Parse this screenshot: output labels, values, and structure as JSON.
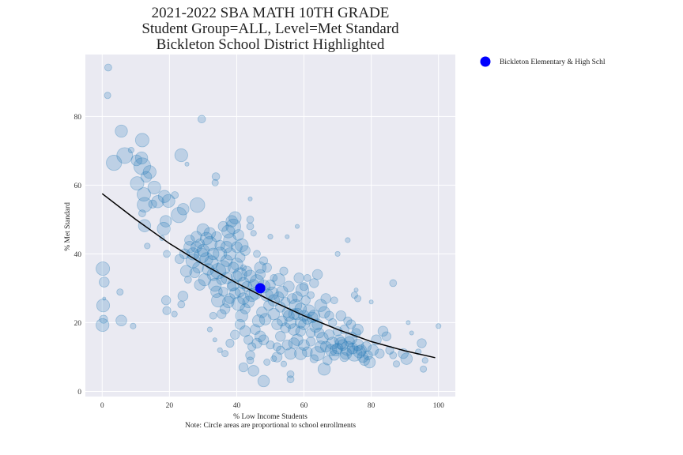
{
  "chart_data": {
    "type": "scatter",
    "title_lines": [
      "2021-2022 SBA MATH 10TH GRADE",
      "Student Group=ALL, Level=Met Standard",
      "Bickleton School District Highlighted"
    ],
    "xlabel": "% Low Income Students",
    "note": "Note: Circle areas are proportional to school enrollments",
    "ylabel": "% Met Standard",
    "xlim": [
      -5,
      105
    ],
    "ylim": [
      -1.5,
      98
    ],
    "xticks": [
      "0",
      "20",
      "40",
      "60",
      "80",
      "100"
    ],
    "yticks": [
      "0",
      "20",
      "40",
      "60",
      "80"
    ],
    "grid": true,
    "legend_position": "right",
    "colors": {
      "background": "#eaeaf2",
      "grid": "#ffffff",
      "point_fill": "#1f77b4",
      "highlight": "#0000ff",
      "trend": "#000000"
    },
    "highlight": {
      "name": "Bickleton Elementary & High Schl",
      "x": 47,
      "y": 30
    },
    "trend_line": {
      "x": [
        0,
        10,
        20,
        30,
        40,
        50,
        60,
        70,
        80,
        90,
        99
      ],
      "y": [
        57.5,
        50.0,
        43.0,
        37.0,
        31.5,
        26.5,
        22.0,
        18.0,
        14.5,
        11.8,
        9.8
      ]
    },
    "points": [
      [
        0.2,
        35.7,
        110
      ],
      [
        0.3,
        25.0,
        100
      ],
      [
        0.1,
        19.3,
        100
      ],
      [
        0.6,
        31.8,
        60
      ],
      [
        0.4,
        21.0,
        40
      ],
      [
        0.6,
        27.0,
        6
      ],
      [
        1.8,
        94.2,
        30
      ],
      [
        1.6,
        86.1,
        25
      ],
      [
        3.5,
        66.5,
        140
      ],
      [
        5.7,
        75.7,
        90
      ],
      [
        6.7,
        68.6,
        150
      ],
      [
        5.7,
        20.6,
        70
      ],
      [
        5.3,
        28.9,
        25
      ],
      [
        8.6,
        70.2,
        20
      ],
      [
        9.2,
        19.0,
        20
      ],
      [
        10.2,
        67.2,
        70
      ],
      [
        10.4,
        60.5,
        110
      ],
      [
        11.7,
        67.9,
        90
      ],
      [
        11.9,
        73.1,
        110
      ],
      [
        11.9,
        65.5,
        170
      ],
      [
        12.4,
        57.3,
        110
      ],
      [
        13.1,
        62.4,
        70
      ],
      [
        12.6,
        54.3,
        130
      ],
      [
        14.1,
        63.8,
        100
      ],
      [
        15.5,
        59.3,
        100
      ],
      [
        12.6,
        48.2,
        90
      ],
      [
        11.9,
        51.8,
        30
      ],
      [
        13.4,
        42.3,
        20
      ],
      [
        15.0,
        54.5,
        40
      ],
      [
        16.5,
        55.2,
        90
      ],
      [
        18.5,
        56.7,
        90
      ],
      [
        19.7,
        55.4,
        100
      ],
      [
        18.9,
        49.5,
        80
      ],
      [
        18.3,
        47.3,
        100
      ],
      [
        17.8,
        44.6,
        15
      ],
      [
        19.2,
        40.0,
        30
      ],
      [
        21.6,
        57.1,
        30
      ],
      [
        23.5,
        68.7,
        100
      ],
      [
        22.8,
        51.3,
        140
      ],
      [
        24.1,
        53.0,
        80
      ],
      [
        25.2,
        66.1,
        10
      ],
      [
        28.3,
        54.2,
        130
      ],
      [
        29.6,
        79.2,
        35
      ],
      [
        33.8,
        62.5,
        35
      ],
      [
        33.6,
        60.7,
        25
      ],
      [
        19.0,
        26.5,
        50
      ],
      [
        19.2,
        23.5,
        40
      ],
      [
        21.5,
        22.5,
        20
      ],
      [
        23.5,
        25.3,
        30
      ],
      [
        24.0,
        27.7,
        60
      ],
      [
        25.5,
        32.5,
        30
      ],
      [
        26.0,
        42.0,
        80
      ],
      [
        24.5,
        40.0,
        60
      ],
      [
        23.0,
        38.5,
        50
      ],
      [
        25.0,
        35.0,
        80
      ],
      [
        27.0,
        38.0,
        120
      ],
      [
        28.0,
        45.0,
        70
      ],
      [
        29.0,
        43.0,
        50
      ],
      [
        30.0,
        41.0,
        90
      ],
      [
        28.5,
        36.0,
        70
      ],
      [
        29.5,
        39.5,
        130
      ],
      [
        31.0,
        44.5,
        90
      ],
      [
        32.0,
        43.0,
        120
      ],
      [
        31.5,
        35.5,
        80
      ],
      [
        30.5,
        32.5,
        90
      ],
      [
        29.0,
        31.0,
        70
      ],
      [
        27.5,
        34.5,
        60
      ],
      [
        32.5,
        37.5,
        110
      ],
      [
        33.0,
        34.0,
        90
      ],
      [
        34.5,
        35.0,
        140
      ],
      [
        33.5,
        31.0,
        100
      ],
      [
        34.0,
        29.0,
        80
      ],
      [
        35.5,
        32.5,
        60
      ],
      [
        36.0,
        36.0,
        120
      ],
      [
        37.0,
        42.0,
        80
      ],
      [
        38.0,
        40.0,
        90
      ],
      [
        37.5,
        46.5,
        100
      ],
      [
        38.5,
        49.5,
        80
      ],
      [
        39.5,
        50.5,
        90
      ],
      [
        39.0,
        48.0,
        130
      ],
      [
        40.5,
        45.5,
        70
      ],
      [
        41.5,
        42.5,
        100
      ],
      [
        42.5,
        41.0,
        60
      ],
      [
        40.0,
        37.0,
        90
      ],
      [
        41.0,
        34.0,
        110
      ],
      [
        42.0,
        31.5,
        80
      ],
      [
        43.0,
        35.0,
        60
      ],
      [
        44.0,
        33.5,
        90
      ],
      [
        45.0,
        31.0,
        70
      ],
      [
        44.5,
        28.0,
        100
      ],
      [
        43.5,
        26.0,
        80
      ],
      [
        42.5,
        24.0,
        60
      ],
      [
        41.5,
        22.0,
        90
      ],
      [
        40.5,
        25.5,
        110
      ],
      [
        39.5,
        28.5,
        70
      ],
      [
        38.5,
        30.5,
        50
      ],
      [
        37.5,
        26.0,
        80
      ],
      [
        36.5,
        24.0,
        60
      ],
      [
        35.5,
        22.5,
        50
      ],
      [
        34.5,
        26.5,
        110
      ],
      [
        33.0,
        22.0,
        30
      ],
      [
        32.0,
        18.0,
        15
      ],
      [
        33.5,
        15.0,
        10
      ],
      [
        35.0,
        12.0,
        15
      ],
      [
        36.5,
        11.0,
        25
      ],
      [
        38.0,
        14.0,
        40
      ],
      [
        39.5,
        16.5,
        50
      ],
      [
        41.0,
        19.5,
        60
      ],
      [
        42.5,
        17.5,
        70
      ],
      [
        43.5,
        15.0,
        50
      ],
      [
        44.5,
        13.0,
        40
      ],
      [
        45.5,
        18.0,
        60
      ],
      [
        46.5,
        20.5,
        90
      ],
      [
        47.5,
        23.0,
        70
      ],
      [
        48.5,
        21.0,
        80
      ],
      [
        49.5,
        25.0,
        60
      ],
      [
        50.5,
        28.5,
        100
      ],
      [
        51.0,
        22.5,
        80
      ],
      [
        52.0,
        19.5,
        70
      ],
      [
        53.0,
        24.5,
        60
      ],
      [
        53.5,
        29.0,
        80
      ],
      [
        52.5,
        32.5,
        90
      ],
      [
        54.0,
        35.0,
        40
      ],
      [
        55.5,
        30.5,
        70
      ],
      [
        56.5,
        27.0,
        60
      ],
      [
        57.5,
        25.0,
        90
      ],
      [
        58.0,
        22.5,
        80
      ],
      [
        59.0,
        20.0,
        70
      ],
      [
        59.5,
        29.5,
        100
      ],
      [
        58.5,
        33.0,
        60
      ],
      [
        60.5,
        26.5,
        50
      ],
      [
        61.5,
        23.5,
        80
      ],
      [
        62.5,
        21.5,
        70
      ],
      [
        63.5,
        19.0,
        90
      ],
      [
        64.5,
        17.0,
        60
      ],
      [
        65.5,
        15.5,
        80
      ],
      [
        66.5,
        13.0,
        70
      ],
      [
        67.5,
        16.5,
        60
      ],
      [
        68.5,
        14.0,
        90
      ],
      [
        69.5,
        12.0,
        80
      ],
      [
        70.5,
        15.0,
        60
      ],
      [
        71.5,
        13.5,
        70
      ],
      [
        72.5,
        11.0,
        80
      ],
      [
        73.5,
        14.5,
        60
      ],
      [
        74.5,
        12.5,
        70
      ],
      [
        75.5,
        17.0,
        50
      ],
      [
        76.5,
        11.5,
        90
      ],
      [
        77.5,
        10.0,
        70
      ],
      [
        78.5,
        13.0,
        60
      ],
      [
        79.5,
        8.5,
        80
      ],
      [
        80.5,
        12.0,
        70
      ],
      [
        81.5,
        15.0,
        60
      ],
      [
        82.5,
        11.0,
        50
      ],
      [
        83.5,
        17.5,
        60
      ],
      [
        84.5,
        16.0,
        50
      ],
      [
        85.5,
        12.0,
        40
      ],
      [
        86.5,
        10.5,
        30
      ],
      [
        87.5,
        8.0,
        25
      ],
      [
        89.5,
        11.0,
        60
      ],
      [
        90.5,
        9.5,
        80
      ],
      [
        91.0,
        20.0,
        10
      ],
      [
        92.0,
        17.0,
        10
      ],
      [
        94.0,
        11.5,
        20
      ],
      [
        95.0,
        14.0,
        50
      ],
      [
        95.5,
        6.5,
        25
      ],
      [
        96.0,
        9.0,
        20
      ],
      [
        100.0,
        19.0,
        15
      ],
      [
        86.5,
        31.5,
        30
      ],
      [
        80.0,
        26.0,
        10
      ],
      [
        73.0,
        44.0,
        15
      ],
      [
        70.0,
        40.0,
        15
      ],
      [
        58.0,
        48.0,
        10
      ],
      [
        55.0,
        45.0,
        10
      ],
      [
        50.0,
        45.0,
        15
      ],
      [
        44.0,
        56.0,
        10
      ],
      [
        44.0,
        48.0,
        30
      ],
      [
        44.0,
        50.0,
        30
      ],
      [
        45.0,
        46.0,
        20
      ],
      [
        42.0,
        36.0,
        20
      ],
      [
        46.0,
        40.0,
        30
      ],
      [
        48.0,
        38.0,
        40
      ],
      [
        49.0,
        36.0,
        50
      ],
      [
        47.0,
        34.0,
        60
      ],
      [
        51.0,
        33.0,
        30
      ],
      [
        52.0,
        10.0,
        60
      ],
      [
        53.0,
        12.0,
        40
      ],
      [
        55.0,
        13.5,
        60
      ],
      [
        56.0,
        11.0,
        80
      ],
      [
        57.0,
        14.0,
        70
      ],
      [
        56.0,
        5.0,
        30
      ],
      [
        56.0,
        3.5,
        30
      ],
      [
        54.0,
        8.0,
        20
      ],
      [
        51.0,
        9.5,
        20
      ],
      [
        49.0,
        8.5,
        25
      ],
      [
        48.0,
        3.0,
        80
      ],
      [
        45.0,
        6.0,
        70
      ],
      [
        44.0,
        9.0,
        30
      ],
      [
        42.0,
        7.0,
        50
      ],
      [
        44.0,
        10.5,
        50
      ],
      [
        46.0,
        14.0,
        60
      ],
      [
        47.0,
        16.0,
        70
      ],
      [
        48.0,
        15.0,
        60
      ],
      [
        50.0,
        13.5,
        40
      ],
      [
        59.0,
        11.0,
        90
      ],
      [
        60.0,
        13.5,
        70
      ],
      [
        61.0,
        11.5,
        60
      ],
      [
        62.0,
        14.5,
        50
      ],
      [
        63.0,
        9.5,
        40
      ],
      [
        64.0,
        11.0,
        120
      ],
      [
        65.0,
        13.0,
        80
      ],
      [
        66.0,
        6.5,
        90
      ],
      [
        67.0,
        9.0,
        50
      ],
      [
        68.0,
        12.0,
        80
      ],
      [
        69.0,
        10.5,
        60
      ],
      [
        70.0,
        12.5,
        70
      ],
      [
        71.0,
        14.0,
        80
      ],
      [
        72.0,
        10.0,
        50
      ],
      [
        73.0,
        12.5,
        120
      ],
      [
        74.0,
        15.5,
        90
      ],
      [
        75.0,
        11.0,
        140
      ],
      [
        76.0,
        13.5,
        80
      ],
      [
        77.0,
        12.0,
        70
      ],
      [
        78.0,
        9.0,
        60
      ],
      [
        79.0,
        10.5,
        50
      ],
      [
        71.0,
        22.0,
        60
      ],
      [
        72.0,
        18.0,
        50
      ],
      [
        73.0,
        20.5,
        40
      ],
      [
        74.0,
        19.5,
        50
      ],
      [
        75.0,
        28.0,
        25
      ],
      [
        76.0,
        27.0,
        25
      ],
      [
        75.5,
        29.5,
        10
      ],
      [
        76.0,
        18.0,
        70
      ],
      [
        60.0,
        30.5,
        40
      ],
      [
        61.0,
        33.0,
        30
      ],
      [
        62.0,
        28.0,
        30
      ],
      [
        63.0,
        31.5,
        50
      ],
      [
        64.0,
        34.0,
        60
      ],
      [
        65.0,
        25.0,
        90
      ],
      [
        66.0,
        23.0,
        80
      ],
      [
        66.5,
        27.0,
        60
      ],
      [
        67.5,
        22.0,
        50
      ],
      [
        68.5,
        20.0,
        40
      ],
      [
        69.0,
        26.5,
        30
      ],
      [
        70.0,
        17.5,
        50
      ],
      [
        52.0,
        13.0,
        40
      ],
      [
        53.0,
        16.0,
        60
      ],
      [
        54.5,
        18.5,
        60
      ],
      [
        55.5,
        22.0,
        70
      ],
      [
        57.0,
        18.0,
        80
      ],
      [
        58.0,
        15.0,
        80
      ],
      [
        59.0,
        17.5,
        60
      ],
      [
        60.0,
        19.5,
        70
      ],
      [
        61.0,
        21.0,
        60
      ],
      [
        62.0,
        17.0,
        50
      ],
      [
        63.0,
        22.0,
        80
      ],
      [
        64.0,
        19.5,
        70
      ],
      [
        45.5,
        28.5,
        90
      ],
      [
        46.0,
        32.0,
        110
      ],
      [
        47.0,
        36.0,
        80
      ],
      [
        48.0,
        30.5,
        100
      ],
      [
        49.0,
        28.0,
        90
      ],
      [
        50.0,
        31.0,
        60
      ],
      [
        51.0,
        26.5,
        80
      ],
      [
        52.5,
        27.5,
        60
      ],
      [
        53.5,
        20.5,
        60
      ],
      [
        54.5,
        26.0,
        50
      ],
      [
        55.0,
        23.0,
        60
      ],
      [
        56.0,
        20.0,
        80
      ],
      [
        57.0,
        22.5,
        70
      ],
      [
        58.0,
        27.5,
        60
      ],
      [
        59.0,
        24.0,
        80
      ],
      [
        60.0,
        22.0,
        70
      ],
      [
        30.0,
        47.0,
        90
      ],
      [
        32.0,
        46.0,
        80
      ],
      [
        34.0,
        45.0,
        60
      ],
      [
        36.0,
        48.0,
        60
      ],
      [
        38.0,
        44.0,
        100
      ],
      [
        40.0,
        42.0,
        70
      ],
      [
        35.0,
        40.0,
        110
      ],
      [
        37.0,
        38.0,
        80
      ],
      [
        39.0,
        36.0,
        70
      ],
      [
        41.0,
        39.0,
        60
      ],
      [
        26.0,
        44.0,
        60
      ],
      [
        27.0,
        40.0,
        90
      ],
      [
        28.0,
        42.0,
        70
      ],
      [
        31.0,
        38.5,
        100
      ],
      [
        33.0,
        40.0,
        80
      ],
      [
        35.0,
        42.5,
        60
      ],
      [
        36.0,
        29.0,
        50
      ],
      [
        37.0,
        33.0,
        80
      ],
      [
        38.0,
        27.0,
        60
      ],
      [
        39.0,
        31.0,
        80
      ],
      [
        40.0,
        33.5,
        70
      ],
      [
        41.0,
        29.0,
        60
      ],
      [
        42.0,
        27.0,
        80
      ],
      [
        43.0,
        30.5,
        60
      ]
    ]
  }
}
